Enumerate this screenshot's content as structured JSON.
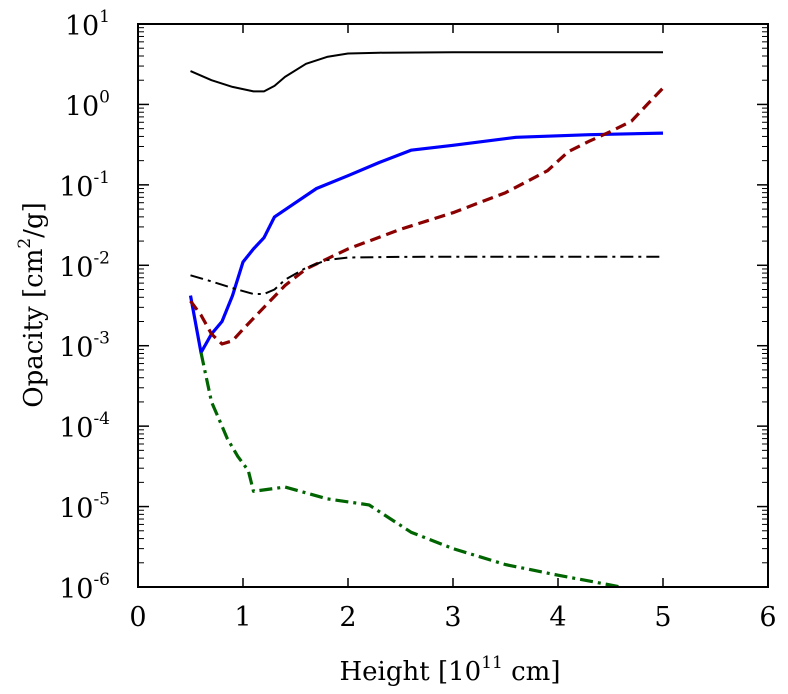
{
  "chart_data": {
    "type": "line",
    "title": "",
    "xlabel": {
      "prefix": "Height [10",
      "exponent": "11",
      "suffix": " cm]"
    },
    "ylabel": {
      "prefix": "Opacity [cm",
      "exponent": "2",
      "suffix": "/g]"
    },
    "xlim": [
      0,
      6
    ],
    "ylim": [
      1e-06,
      10
    ],
    "yscale": "log",
    "grid": false,
    "legend": "none",
    "x_ticks": [
      {
        "value": 0,
        "label": "0"
      },
      {
        "value": 1,
        "label": "1"
      },
      {
        "value": 2,
        "label": "2"
      },
      {
        "value": 3,
        "label": "3"
      },
      {
        "value": 4,
        "label": "4"
      },
      {
        "value": 5,
        "label": "5"
      },
      {
        "value": 6,
        "label": "6"
      }
    ],
    "y_ticks": [
      {
        "value": 1e-06,
        "base": "10",
        "exp": "-6"
      },
      {
        "value": 1e-05,
        "base": "10",
        "exp": "-5"
      },
      {
        "value": 0.0001,
        "base": "10",
        "exp": "-4"
      },
      {
        "value": 0.001,
        "base": "10",
        "exp": "-3"
      },
      {
        "value": 0.01,
        "base": "10",
        "exp": "-2"
      },
      {
        "value": 0.1,
        "base": "10",
        "exp": "-1"
      },
      {
        "value": 1,
        "base": "10",
        "exp": "0"
      },
      {
        "value": 10,
        "base": "10",
        "exp": "1"
      }
    ],
    "series": [
      {
        "color": "#000000",
        "dash": "solid",
        "width": "thin",
        "points": [
          [
            0.5,
            2.6
          ],
          [
            0.7,
            2.0
          ],
          [
            0.9,
            1.65
          ],
          [
            1.1,
            1.45
          ],
          [
            1.2,
            1.45
          ],
          [
            1.3,
            1.7
          ],
          [
            1.4,
            2.2
          ],
          [
            1.6,
            3.2
          ],
          [
            1.8,
            3.9
          ],
          [
            2.0,
            4.3
          ],
          [
            2.3,
            4.4
          ],
          [
            3.0,
            4.45
          ],
          [
            4.0,
            4.45
          ],
          [
            5.0,
            4.45
          ]
        ]
      },
      {
        "color": "#0000ff",
        "dash": "solid",
        "width": "thick",
        "points": [
          [
            0.5,
            0.0042
          ],
          [
            0.6,
            0.00082
          ],
          [
            0.7,
            0.0014
          ],
          [
            0.8,
            0.002
          ],
          [
            0.9,
            0.0042
          ],
          [
            1.0,
            0.011
          ],
          [
            1.1,
            0.016
          ],
          [
            1.2,
            0.022
          ],
          [
            1.3,
            0.04
          ],
          [
            1.5,
            0.06
          ],
          [
            1.7,
            0.09
          ],
          [
            2.0,
            0.13
          ],
          [
            2.3,
            0.19
          ],
          [
            2.6,
            0.27
          ],
          [
            3.0,
            0.31
          ],
          [
            3.6,
            0.39
          ],
          [
            4.3,
            0.42
          ],
          [
            5.0,
            0.44
          ]
        ]
      },
      {
        "color": "#8b0000",
        "dash": "dashed",
        "width": "thick",
        "points": [
          [
            0.5,
            0.0036
          ],
          [
            0.6,
            0.0024
          ],
          [
            0.7,
            0.0014
          ],
          [
            0.8,
            0.00105
          ],
          [
            0.9,
            0.00115
          ],
          [
            1.0,
            0.0016
          ],
          [
            1.2,
            0.003
          ],
          [
            1.4,
            0.0056
          ],
          [
            1.6,
            0.009
          ],
          [
            1.8,
            0.012
          ],
          [
            2.0,
            0.016
          ],
          [
            2.5,
            0.028
          ],
          [
            3.0,
            0.045
          ],
          [
            3.5,
            0.08
          ],
          [
            3.9,
            0.15
          ],
          [
            4.1,
            0.26
          ],
          [
            4.3,
            0.35
          ],
          [
            4.5,
            0.46
          ],
          [
            4.7,
            0.62
          ],
          [
            4.85,
            1.0
          ],
          [
            5.0,
            1.6
          ]
        ]
      },
      {
        "color": "#000000",
        "dash": "dash-dot",
        "width": "thin",
        "points": [
          [
            0.5,
            0.0075
          ],
          [
            0.7,
            0.0063
          ],
          [
            0.9,
            0.0052
          ],
          [
            1.1,
            0.0044
          ],
          [
            1.2,
            0.0044
          ],
          [
            1.3,
            0.005
          ],
          [
            1.4,
            0.0066
          ],
          [
            1.6,
            0.0093
          ],
          [
            1.8,
            0.0116
          ],
          [
            2.0,
            0.0125
          ],
          [
            2.5,
            0.0127
          ],
          [
            3.0,
            0.0128
          ],
          [
            4.0,
            0.0128
          ],
          [
            5.0,
            0.0128
          ]
        ]
      },
      {
        "color": "#006400",
        "dash": "dash-dot",
        "width": "thick",
        "points": [
          [
            0.6,
            0.00082
          ],
          [
            0.7,
            0.0002
          ],
          [
            0.8,
            0.0001
          ],
          [
            0.85,
            7e-05
          ],
          [
            0.95,
            4.2e-05
          ],
          [
            1.05,
            2.8e-05
          ],
          [
            1.1,
            1.55e-05
          ],
          [
            1.4,
            1.75e-05
          ],
          [
            1.8,
            1.25e-05
          ],
          [
            2.2,
            1.05e-05
          ],
          [
            2.6,
            4.8e-06
          ],
          [
            3.0,
            3e-06
          ],
          [
            3.5,
            1.9e-06
          ],
          [
            4.0,
            1.4e-06
          ],
          [
            4.6,
            1e-06
          ]
        ]
      }
    ]
  }
}
